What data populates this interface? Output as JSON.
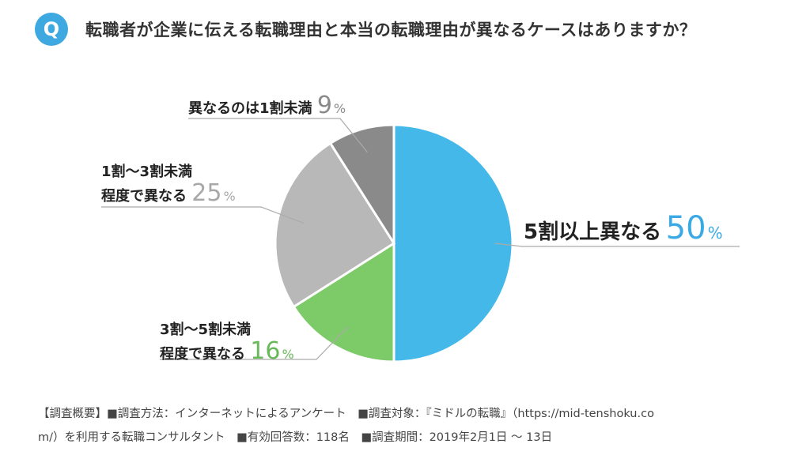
{
  "header": {
    "badge": "Q",
    "question": "転職者が企業に伝える転職理由と本当の転職理由が異なるケースはありますか？"
  },
  "chart_data": {
    "type": "pie",
    "title": "転職者が企業に伝える転職理由と本当の転職理由が異なるケースはありますか？",
    "slices": [
      {
        "label": "5割以上異なる",
        "value": 50,
        "color": "#45b8ea",
        "text_color": "#3aa9e4"
      },
      {
        "label": "3割～5割未満程度で異なる",
        "value": 16,
        "color": "#7cca68",
        "text_color": "#69b85a"
      },
      {
        "label": "1割～3割未満程度で異なる",
        "value": 25,
        "color": "#b8b8b8",
        "text_color": "#a8a8a8"
      },
      {
        "label": "異なるのは1割未満",
        "value": 9,
        "color": "#8a8a8a",
        "text_color": "#8a8a8a"
      }
    ],
    "unit": "%"
  },
  "labels": {
    "s50": {
      "line1": "5割以上異なる",
      "num": "50",
      "unit": "%"
    },
    "s16": {
      "line1": "3割～5割未満",
      "line2": "程度で異なる",
      "num": "16",
      "unit": "%"
    },
    "s25": {
      "line1": "1割～3割未満",
      "line2": "程度で異なる",
      "num": "25",
      "unit": "%"
    },
    "s9": {
      "line1": "異なるのは1割未満",
      "num": "9",
      "unit": "%"
    }
  },
  "footnote": {
    "line1": "【調査概要】■調査方法：インターネットによるアンケート　■調査対象：『ミドルの転職』（https://mid-tenshoku.co",
    "line2": "m/）を利用する転職コンサルタント　■有効回答数：118名　■調査期間：2019年2月1日 ～ 13日"
  }
}
